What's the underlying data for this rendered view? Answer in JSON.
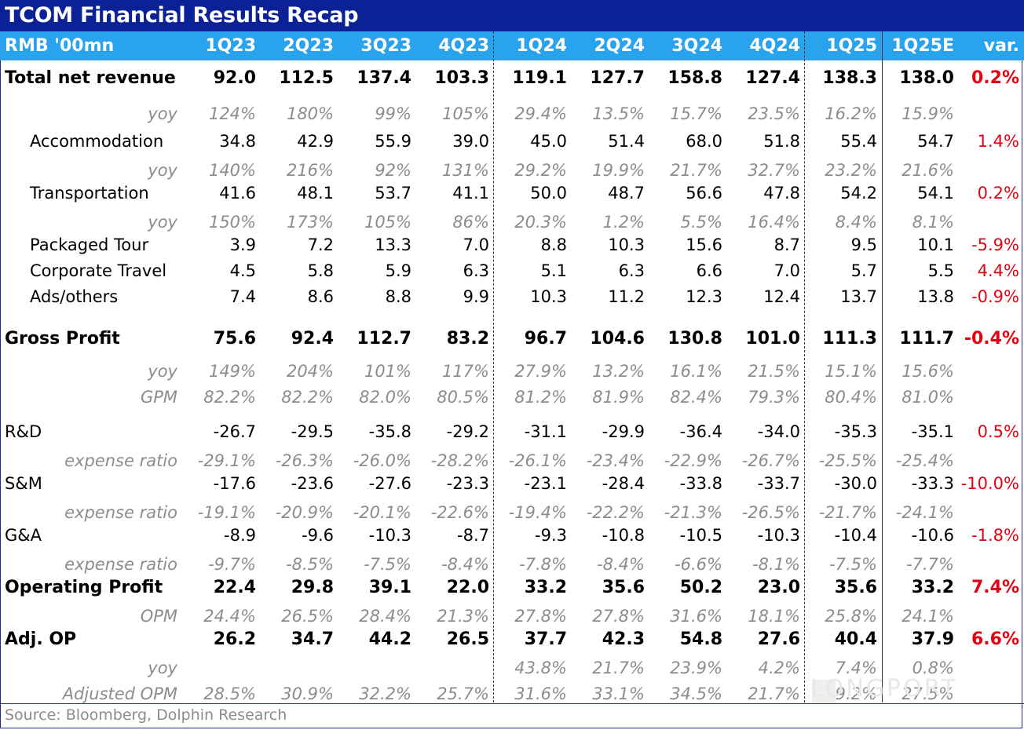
{
  "title": "TCOM Financial Results Recap",
  "header": {
    "unit_label": "RMB '00mn",
    "periods": [
      "1Q23",
      "2Q23",
      "3Q23",
      "4Q23",
      "1Q24",
      "2Q24",
      "3Q24",
      "4Q24",
      "1Q25",
      "1Q25E"
    ],
    "var_label": "var."
  },
  "rows": [
    {
      "label": "Total net revenue",
      "kind": "bold",
      "values": [
        "92.0",
        "112.5",
        "137.4",
        "103.3",
        "119.1",
        "127.7",
        "158.8",
        "127.4",
        "138.3",
        "138.0"
      ],
      "var": "0.2%"
    },
    {
      "label": "yoy",
      "kind": "yoy",
      "values": [
        "124%",
        "180%",
        "99%",
        "105%",
        "29.4%",
        "13.5%",
        "15.7%",
        "23.5%",
        "16.2%",
        "15.9%"
      ],
      "var": ""
    },
    {
      "label": "Accommodation",
      "kind": "sub",
      "values": [
        "34.8",
        "42.9",
        "55.9",
        "39.0",
        "45.0",
        "51.4",
        "68.0",
        "51.8",
        "55.4",
        "54.7"
      ],
      "var": "1.4%"
    },
    {
      "label": "yoy",
      "kind": "yoy",
      "values": [
        "140%",
        "216%",
        "92%",
        "131%",
        "29.2%",
        "19.9%",
        "21.7%",
        "32.7%",
        "23.2%",
        "21.6%"
      ],
      "var": ""
    },
    {
      "label": "Transportation",
      "kind": "sub",
      "values": [
        "41.6",
        "48.1",
        "53.7",
        "41.1",
        "50.0",
        "48.7",
        "56.6",
        "47.8",
        "54.2",
        "54.1"
      ],
      "var": "0.2%"
    },
    {
      "label": "yoy",
      "kind": "yoy",
      "values": [
        "150%",
        "173%",
        "105%",
        "86%",
        "20.3%",
        "1.2%",
        "5.5%",
        "16.4%",
        "8.4%",
        "8.1%"
      ],
      "var": ""
    },
    {
      "label": "Packaged Tour",
      "kind": "sub",
      "values": [
        "3.9",
        "7.2",
        "13.3",
        "7.0",
        "8.8",
        "10.3",
        "15.6",
        "8.7",
        "9.5",
        "10.1"
      ],
      "var": "-5.9%"
    },
    {
      "label": "Corporate Travel",
      "kind": "sub",
      "values": [
        "4.5",
        "5.8",
        "5.9",
        "6.3",
        "5.1",
        "6.3",
        "6.6",
        "7.0",
        "5.7",
        "5.5"
      ],
      "var": "4.4%"
    },
    {
      "label": "Ads/others",
      "kind": "sub",
      "values": [
        "7.4",
        "8.6",
        "8.8",
        "9.9",
        "10.3",
        "11.2",
        "12.3",
        "12.4",
        "13.7",
        "13.8"
      ],
      "var": "-0.9%"
    },
    {
      "label": "Gross Profit",
      "kind": "bold",
      "values": [
        "75.6",
        "92.4",
        "112.7",
        "83.2",
        "96.7",
        "104.6",
        "130.8",
        "101.0",
        "111.3",
        "111.7"
      ],
      "var": "-0.4%"
    },
    {
      "label": "yoy",
      "kind": "yoy",
      "values": [
        "149%",
        "204%",
        "101%",
        "117%",
        "27.9%",
        "13.2%",
        "16.1%",
        "21.5%",
        "15.1%",
        "15.6%"
      ],
      "var": ""
    },
    {
      "label": "GPM",
      "kind": "yoy",
      "values": [
        "82.2%",
        "82.2%",
        "82.0%",
        "80.5%",
        "81.2%",
        "81.9%",
        "82.4%",
        "79.3%",
        "80.4%",
        "81.0%"
      ],
      "var": ""
    },
    {
      "label": "R&D",
      "kind": "plain",
      "values": [
        "-26.7",
        "-29.5",
        "-35.8",
        "-29.2",
        "-31.1",
        "-29.9",
        "-36.4",
        "-34.0",
        "-35.3",
        "-35.1"
      ],
      "var": "0.5%"
    },
    {
      "label": "expense ratio",
      "kind": "yoy",
      "values": [
        "-29.1%",
        "-26.3%",
        "-26.0%",
        "-28.2%",
        "-26.1%",
        "-23.4%",
        "-22.9%",
        "-26.7%",
        "-25.5%",
        "-25.4%"
      ],
      "var": ""
    },
    {
      "label": "S&M",
      "kind": "plain",
      "values": [
        "-17.6",
        "-23.6",
        "-27.6",
        "-23.3",
        "-23.1",
        "-28.4",
        "-33.8",
        "-33.7",
        "-30.0",
        "-33.3"
      ],
      "var": "-10.0%"
    },
    {
      "label": "expense ratio",
      "kind": "yoy",
      "values": [
        "-19.1%",
        "-20.9%",
        "-20.1%",
        "-22.6%",
        "-19.4%",
        "-22.2%",
        "-21.3%",
        "-26.5%",
        "-21.7%",
        "-24.1%"
      ],
      "var": ""
    },
    {
      "label": "G&A",
      "kind": "plain",
      "values": [
        "-8.9",
        "-9.6",
        "-10.3",
        "-8.7",
        "-9.3",
        "-10.8",
        "-10.5",
        "-10.3",
        "-10.4",
        "-10.6"
      ],
      "var": "-1.8%"
    },
    {
      "label": "expense ratio",
      "kind": "yoy",
      "values": [
        "-9.7%",
        "-8.5%",
        "-7.5%",
        "-8.4%",
        "-7.8%",
        "-8.4%",
        "-6.6%",
        "-8.1%",
        "-7.5%",
        "-7.7%"
      ],
      "var": ""
    },
    {
      "label": "Operating Profit",
      "kind": "bold",
      "values": [
        "22.4",
        "29.8",
        "39.1",
        "22.0",
        "33.2",
        "35.6",
        "50.2",
        "23.0",
        "35.6",
        "33.2"
      ],
      "var": "7.4%"
    },
    {
      "label": "OPM",
      "kind": "yoy",
      "values": [
        "24.4%",
        "26.5%",
        "28.4%",
        "21.3%",
        "27.8%",
        "27.8%",
        "31.6%",
        "18.1%",
        "25.8%",
        "24.1%"
      ],
      "var": ""
    },
    {
      "label": "Adj. OP",
      "kind": "bold",
      "values": [
        "26.2",
        "34.7",
        "44.2",
        "26.5",
        "37.7",
        "42.3",
        "54.8",
        "27.6",
        "40.4",
        "37.9"
      ],
      "var": "6.6%"
    },
    {
      "label": "yoy",
      "kind": "yoy",
      "values": [
        "",
        "",
        "",
        "",
        "43.8%",
        "21.7%",
        "23.9%",
        "4.2%",
        "7.4%",
        "0.8%"
      ],
      "var": ""
    },
    {
      "label": "Adjusted OPM",
      "kind": "yoy",
      "values": [
        "28.5%",
        "30.9%",
        "32.2%",
        "25.7%",
        "31.6%",
        "33.1%",
        "34.5%",
        "21.7%",
        "29.2%",
        "27.5%"
      ],
      "var": ""
    }
  ],
  "source": "Source:  Bloomberg, Dolphin Research",
  "watermark": "LONGPORT"
}
